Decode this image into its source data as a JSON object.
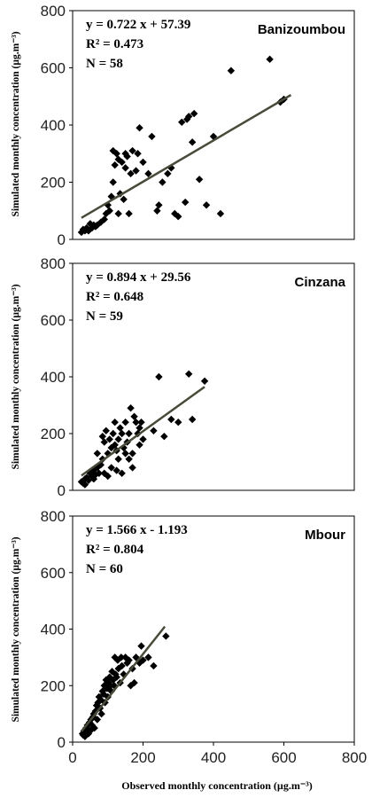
{
  "figure": {
    "y_axis_label": "Simulated monthly concentration (µg.m⁻³)",
    "x_axis_label": "Observed monthly concentration (µg.m⁻³)"
  },
  "chart_data": [
    {
      "type": "scatter",
      "site": "Banizoumbou",
      "equation": "y = 0.722 x + 57.39",
      "r2_label": "R² = 0.473",
      "n_label": "N = 58",
      "xlim": [
        0,
        800
      ],
      "ylim": [
        0,
        800
      ],
      "y_ticks": [
        0,
        200,
        400,
        600,
        800
      ],
      "x_ticks": [],
      "trendline": {
        "slope": 0.722,
        "intercept": 57.39,
        "x_range": [
          25,
          620
        ]
      },
      "points": [
        [
          25,
          25
        ],
        [
          30,
          35
        ],
        [
          35,
          30
        ],
        [
          40,
          40
        ],
        [
          45,
          30
        ],
        [
          50,
          55
        ],
        [
          55,
          40
        ],
        [
          60,
          50
        ],
        [
          65,
          45
        ],
        [
          70,
          50
        ],
        [
          80,
          60
        ],
        [
          90,
          70
        ],
        [
          95,
          90
        ],
        [
          100,
          120
        ],
        [
          105,
          100
        ],
        [
          110,
          150
        ],
        [
          115,
          200
        ],
        [
          115,
          310
        ],
        [
          120,
          260
        ],
        [
          125,
          300
        ],
        [
          130,
          280
        ],
        [
          130,
          90
        ],
        [
          135,
          160
        ],
        [
          140,
          270
        ],
        [
          145,
          140
        ],
        [
          150,
          250
        ],
        [
          150,
          300
        ],
        [
          155,
          290
        ],
        [
          160,
          90
        ],
        [
          165,
          230
        ],
        [
          170,
          310
        ],
        [
          180,
          240
        ],
        [
          185,
          300
        ],
        [
          190,
          390
        ],
        [
          200,
          270
        ],
        [
          215,
          230
        ],
        [
          225,
          360
        ],
        [
          240,
          100
        ],
        [
          245,
          120
        ],
        [
          255,
          200
        ],
        [
          270,
          230
        ],
        [
          280,
          250
        ],
        [
          290,
          90
        ],
        [
          300,
          80
        ],
        [
          310,
          410
        ],
        [
          320,
          130
        ],
        [
          325,
          420
        ],
        [
          330,
          430
        ],
        [
          340,
          340
        ],
        [
          345,
          440
        ],
        [
          360,
          210
        ],
        [
          380,
          120
        ],
        [
          400,
          360
        ],
        [
          420,
          90
        ],
        [
          450,
          590
        ],
        [
          560,
          630
        ],
        [
          590,
          480
        ],
        [
          600,
          490
        ]
      ]
    },
    {
      "type": "scatter",
      "site": "Cinzana",
      "equation": "y = 0.894 x + 29.56",
      "r2_label": "R² = 0.648",
      "n_label": "N = 59",
      "xlim": [
        0,
        800
      ],
      "ylim": [
        0,
        800
      ],
      "y_ticks": [
        0,
        200,
        400,
        600,
        800
      ],
      "x_ticks": [],
      "trendline": {
        "slope": 0.894,
        "intercept": 29.56,
        "x_range": [
          25,
          375
        ]
      },
      "points": [
        [
          25,
          30
        ],
        [
          30,
          25
        ],
        [
          35,
          40
        ],
        [
          35,
          20
        ],
        [
          40,
          45
        ],
        [
          45,
          35
        ],
        [
          50,
          60
        ],
        [
          55,
          50
        ],
        [
          60,
          70
        ],
        [
          60,
          40
        ],
        [
          65,
          55
        ],
        [
          70,
          80
        ],
        [
          70,
          130
        ],
        [
          75,
          60
        ],
        [
          80,
          90
        ],
        [
          85,
          110
        ],
        [
          85,
          190
        ],
        [
          90,
          170
        ],
        [
          90,
          60
        ],
        [
          95,
          210
        ],
        [
          100,
          130
        ],
        [
          100,
          50
        ],
        [
          105,
          180
        ],
        [
          110,
          150
        ],
        [
          110,
          80
        ],
        [
          115,
          200
        ],
        [
          120,
          160
        ],
        [
          120,
          240
        ],
        [
          125,
          140
        ],
        [
          125,
          70
        ],
        [
          130,
          180
        ],
        [
          130,
          110
        ],
        [
          135,
          220
        ],
        [
          140,
          200
        ],
        [
          140,
          60
        ],
        [
          145,
          150
        ],
        [
          150,
          240
        ],
        [
          150,
          130
        ],
        [
          155,
          170
        ],
        [
          160,
          200
        ],
        [
          160,
          110
        ],
        [
          165,
          290
        ],
        [
          170,
          130
        ],
        [
          170,
          80
        ],
        [
          175,
          260
        ],
        [
          180,
          240
        ],
        [
          185,
          200
        ],
        [
          190,
          220
        ],
        [
          190,
          160
        ],
        [
          195,
          240
        ],
        [
          200,
          180
        ],
        [
          230,
          210
        ],
        [
          245,
          400
        ],
        [
          260,
          190
        ],
        [
          280,
          250
        ],
        [
          300,
          240
        ],
        [
          330,
          410
        ],
        [
          340,
          250
        ],
        [
          375,
          385
        ]
      ]
    },
    {
      "type": "scatter",
      "site": "Mbour",
      "equation": "y = 1.566 x - 1.193",
      "r2_label": "R² = 0.804",
      "n_label": "N = 60",
      "xlim": [
        0,
        800
      ],
      "ylim": [
        0,
        800
      ],
      "y_ticks": [
        0,
        200,
        400,
        600,
        800
      ],
      "x_ticks": [
        0,
        200,
        400,
        600,
        800
      ],
      "trendline": {
        "slope": 1.566,
        "intercept": -1.193,
        "x_range": [
          25,
          262
        ]
      },
      "points": [
        [
          28,
          30
        ],
        [
          30,
          25
        ],
        [
          32,
          40
        ],
        [
          35,
          20
        ],
        [
          38,
          50
        ],
        [
          40,
          35
        ],
        [
          42,
          60
        ],
        [
          45,
          30
        ],
        [
          45,
          45
        ],
        [
          48,
          70
        ],
        [
          50,
          40
        ],
        [
          52,
          80
        ],
        [
          55,
          60
        ],
        [
          58,
          90
        ],
        [
          60,
          100
        ],
        [
          62,
          50
        ],
        [
          65,
          110
        ],
        [
          68,
          130
        ],
        [
          70,
          80
        ],
        [
          72,
          140
        ],
        [
          75,
          160
        ],
        [
          78,
          120
        ],
        [
          80,
          150
        ],
        [
          82,
          100
        ],
        [
          85,
          180
        ],
        [
          88,
          170
        ],
        [
          90,
          200
        ],
        [
          92,
          140
        ],
        [
          95,
          220
        ],
        [
          98,
          190
        ],
        [
          100,
          160
        ],
        [
          102,
          210
        ],
        [
          105,
          230
        ],
        [
          108,
          200
        ],
        [
          110,
          180
        ],
        [
          112,
          250
        ],
        [
          115,
          220
        ],
        [
          118,
          200
        ],
        [
          120,
          300
        ],
        [
          122,
          240
        ],
        [
          125,
          230
        ],
        [
          128,
          290
        ],
        [
          130,
          260
        ],
        [
          135,
          210
        ],
        [
          138,
          300
        ],
        [
          140,
          270
        ],
        [
          145,
          240
        ],
        [
          150,
          300
        ],
        [
          155,
          280
        ],
        [
          160,
          290
        ],
        [
          165,
          200
        ],
        [
          170,
          260
        ],
        [
          175,
          210
        ],
        [
          180,
          300
        ],
        [
          190,
          280
        ],
        [
          195,
          340
        ],
        [
          200,
          290
        ],
        [
          215,
          300
        ],
        [
          230,
          270
        ],
        [
          265,
          375
        ]
      ]
    }
  ]
}
